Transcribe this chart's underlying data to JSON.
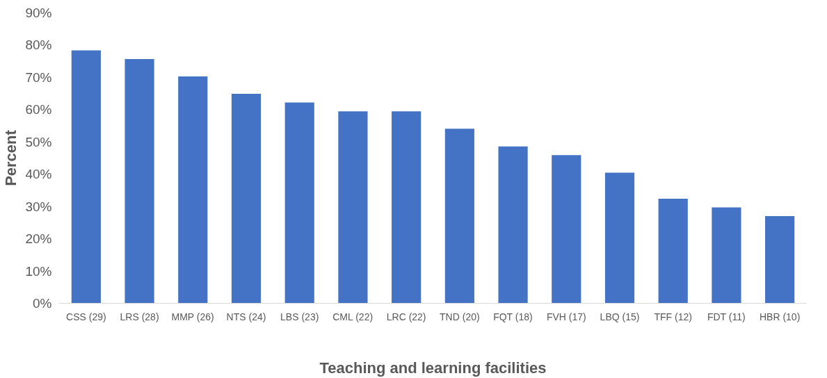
{
  "chart_data": {
    "type": "bar",
    "xlabel": "Teaching and learning facilities",
    "ylabel": "Percent",
    "categories": [
      "CSS (29)",
      "LRS (28)",
      "MMP (26)",
      "NTS (24)",
      "LBS (23)",
      "CML (22)",
      "LRC (22)",
      "TND (20)",
      "FQT (18)",
      "FVH (17)",
      "LBQ (15)",
      "TFF (12)",
      "FDT (11)",
      "HBR (10)"
    ],
    "values": [
      78.4,
      75.7,
      70.3,
      64.9,
      62.2,
      59.5,
      59.5,
      54.1,
      48.6,
      45.9,
      40.5,
      32.4,
      29.7,
      27.0
    ],
    "color": "#4472c4",
    "ylim": [
      0,
      90
    ],
    "yticks": [
      {
        "value": 0,
        "label": "0%"
      },
      {
        "value": 10,
        "label": "10%"
      },
      {
        "value": 20,
        "label": "20%"
      },
      {
        "value": 30,
        "label": "30%"
      },
      {
        "value": 40,
        "label": "40%"
      },
      {
        "value": 50,
        "label": "50%"
      },
      {
        "value": 60,
        "label": "60%"
      },
      {
        "value": 70,
        "label": "70%"
      },
      {
        "value": 80,
        "label": "80%"
      },
      {
        "value": 90,
        "label": "90%"
      }
    ],
    "grid": false
  }
}
